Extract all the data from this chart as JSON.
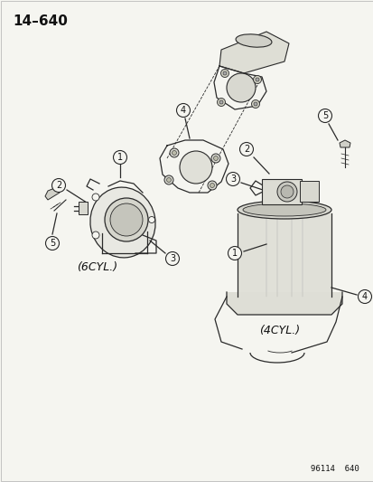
{
  "title": "14–640",
  "bg_color": "#f5f5f0",
  "page_ref": "96114  640",
  "label_6cyl": "(6CYL.)",
  "label_4cyl": "(4CYL.)",
  "title_fontsize": 11,
  "label_fontsize": 9,
  "ref_fontsize": 6.5,
  "circled_num_fontsize": 7,
  "line_color": "#2a2a2a",
  "text_color": "#111111",
  "border_color": "#bbbbbb"
}
